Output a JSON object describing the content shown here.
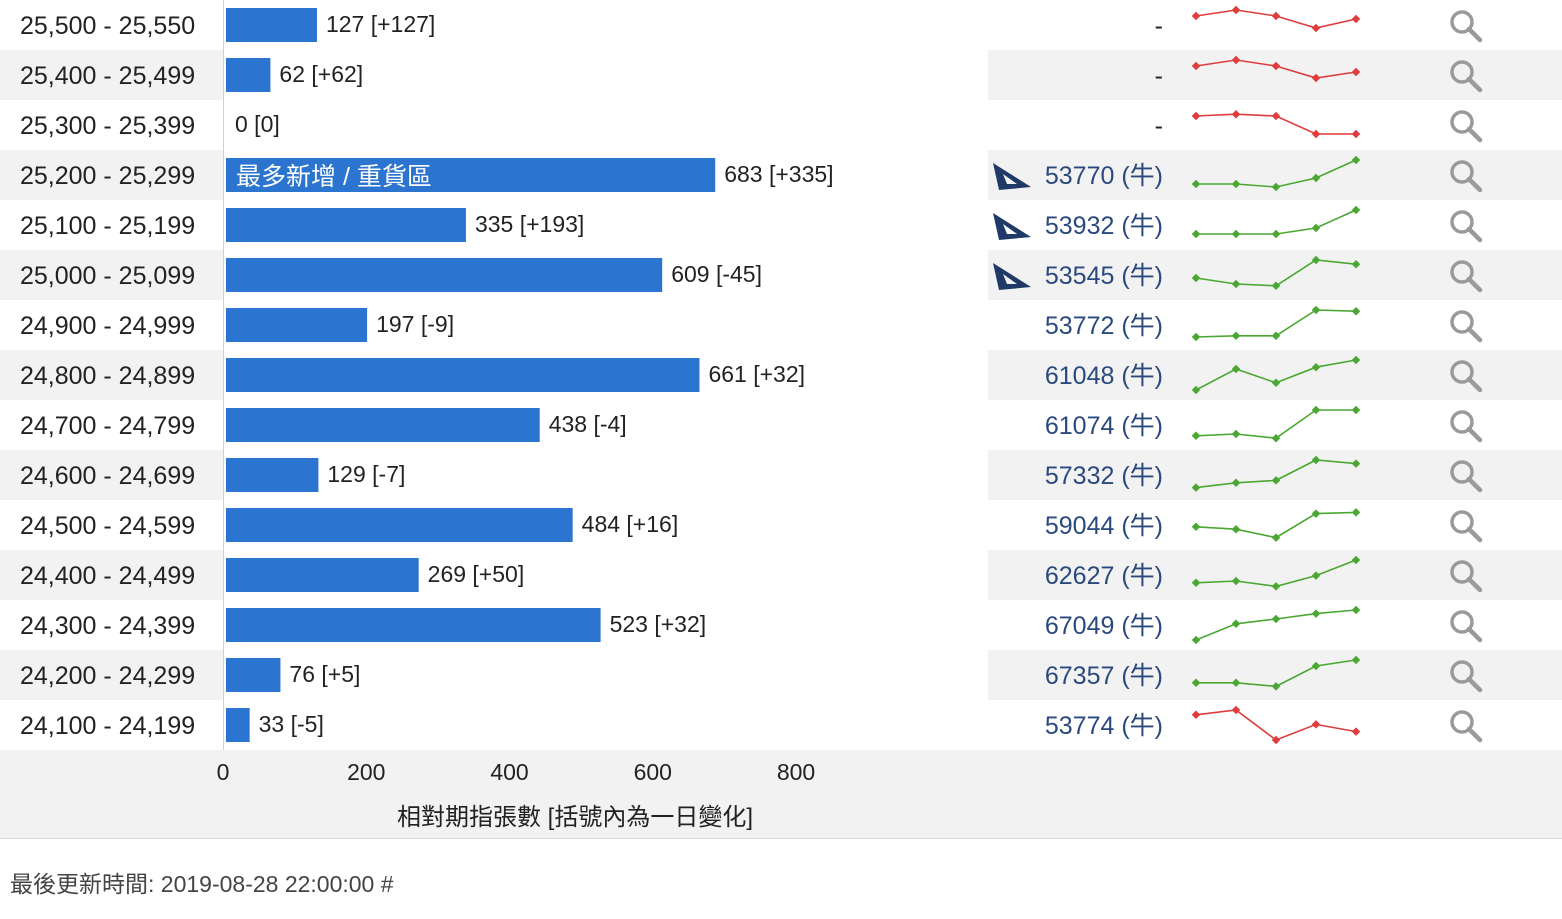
{
  "chart_data": {
    "type": "bar",
    "orientation": "horizontal",
    "categories": [
      "25,500 - 25,550",
      "25,400 - 25,499",
      "25,300 - 25,399",
      "25,200 - 25,299",
      "25,100 - 25,199",
      "25,000 - 25,099",
      "24,900 - 24,999",
      "24,800 - 24,899",
      "24,700 - 24,799",
      "24,600 - 24,699",
      "24,500 - 24,599",
      "24,400 - 24,499",
      "24,300 - 24,399",
      "24,200 - 24,299",
      "24,100 - 24,199"
    ],
    "values": [
      127,
      62,
      0,
      683,
      335,
      609,
      197,
      661,
      438,
      129,
      484,
      269,
      523,
      76,
      33
    ],
    "changes": [
      127,
      62,
      0,
      335,
      193,
      -45,
      -9,
      32,
      -4,
      -7,
      16,
      50,
      32,
      5,
      -5
    ],
    "value_labels": [
      "127 [+127]",
      "62 [+62]",
      "0 [0]",
      "683 [+335]",
      "335 [+193]",
      "609 [-45]",
      "197 [-9]",
      "661 [+32]",
      "438 [-4]",
      "129 [-7]",
      "484 [+16]",
      "269 [+50]",
      "523 [+32]",
      "76 [+5]",
      "33 [-5]"
    ],
    "highlight_index": 3,
    "highlight_label": "最多新增 / 重貨區",
    "xlabel": "相對期指張數 [括號內為一日變化]",
    "xlim": [
      0,
      800
    ],
    "xticks": [
      "0",
      "200",
      "400",
      "600",
      "800"
    ],
    "bar_color": "#2b74cf",
    "row_stripe_color": "#f2f2f2",
    "codes": [
      "-",
      "-",
      "-",
      "53770 (牛)",
      "53932 (牛)",
      "53545 (牛)",
      "53772 (牛)",
      "61048 (牛)",
      "61074 (牛)",
      "57332 (牛)",
      "59044 (牛)",
      "62627 (牛)",
      "67049 (牛)",
      "67357 (牛)",
      "53774 (牛)"
    ],
    "code_color": "#2a4a7e",
    "shark_icon_rows": [
      3,
      4,
      5
    ],
    "sparklines": [
      {
        "trend": "down",
        "color": "#e03c3c",
        "values": [
          4,
          5,
          4,
          2,
          3.5
        ]
      },
      {
        "trend": "down",
        "color": "#e03c3c",
        "values": [
          4,
          5,
          4,
          2,
          3
        ]
      },
      {
        "trend": "down",
        "color": "#e03c3c",
        "values": [
          4,
          4.3,
          4,
          1,
          1
        ]
      },
      {
        "trend": "up",
        "color": "#4aa832",
        "values": [
          1,
          1,
          0.5,
          2,
          5
        ]
      },
      {
        "trend": "up",
        "color": "#4aa832",
        "values": [
          1,
          1,
          1,
          2,
          5
        ]
      },
      {
        "trend": "up",
        "color": "#4aa832",
        "values": [
          2,
          1,
          0.7,
          5,
          4.3
        ]
      },
      {
        "trend": "up",
        "color": "#4aa832",
        "values": [
          0.5,
          0.7,
          0.7,
          5,
          4.8
        ]
      },
      {
        "trend": "up",
        "color": "#4aa832",
        "values": [
          0,
          3.5,
          1.2,
          3.8,
          5
        ]
      },
      {
        "trend": "up",
        "color": "#4aa832",
        "values": [
          0.7,
          1,
          0.3,
          5,
          5
        ]
      },
      {
        "trend": "up",
        "color": "#4aa832",
        "values": [
          0.4,
          1.2,
          1.6,
          5,
          4.4
        ]
      },
      {
        "trend": "up",
        "color": "#4aa832",
        "values": [
          2.2,
          1.8,
          0.4,
          4.4,
          4.6
        ]
      },
      {
        "trend": "up",
        "color": "#4aa832",
        "values": [
          1.2,
          1.5,
          0.6,
          2.4,
          5
        ]
      },
      {
        "trend": "up",
        "color": "#4aa832",
        "values": [
          0,
          2.7,
          3.5,
          4.4,
          5
        ]
      },
      {
        "trend": "up",
        "color": "#4aa832",
        "values": [
          1.2,
          1.2,
          0.6,
          4,
          5
        ]
      },
      {
        "trend": "down",
        "color": "#e03c3c",
        "values": [
          4.2,
          5,
          0,
          2.6,
          1.4
        ]
      }
    ],
    "action_icon": "magnifier-icon",
    "grid": false
  },
  "footer": {
    "last_updated": "最後更新時間: 2019-08-28 22:00:00 #"
  }
}
